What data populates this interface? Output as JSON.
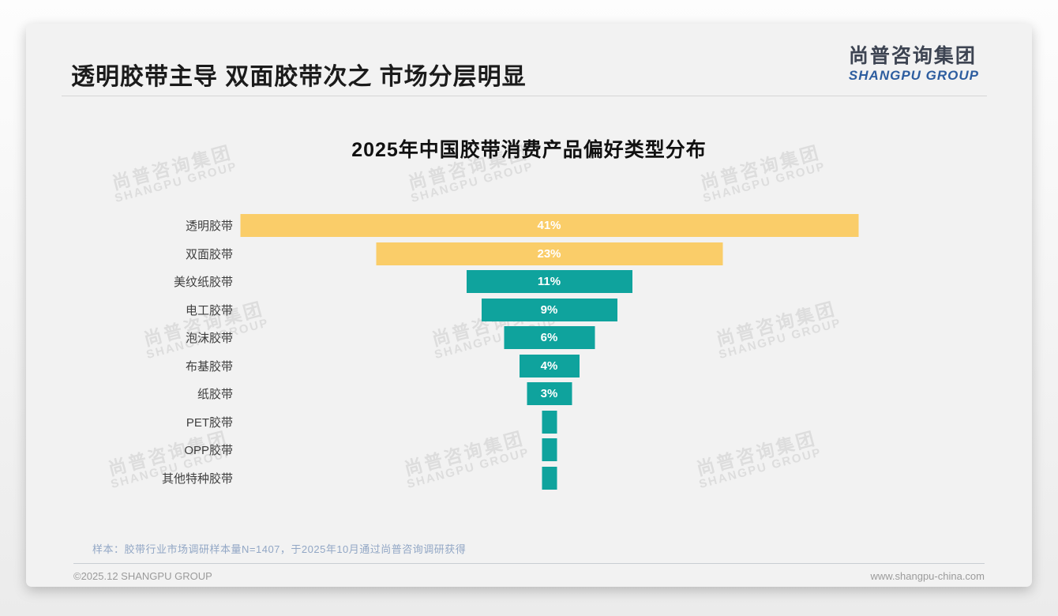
{
  "page": {
    "title": "透明胶带主导 双面胶带次之 市场分层明显",
    "logo": {
      "cn": "尚普咨询集团",
      "en": "SHANGPU GROUP"
    },
    "watermark": {
      "line1": "尚普咨询集团",
      "line2": "SHANGPU GROUP"
    },
    "note": "样本：胶带行业市场调研样本量N=1407，于2025年10月通过尚普咨询调研获得",
    "footer": {
      "left": "©2025.12 SHANGPU GROUP",
      "right": "www.shangpu-china.com"
    }
  },
  "colors": {
    "bar_highlight": "#FACD69",
    "bar_default": "#0FA39D",
    "slide_background": "#f2f2f2",
    "logo_blue": "#2d5d9f",
    "note_blue_gray": "#92a7c5"
  },
  "chart_data": {
    "type": "bar",
    "orientation": "horizontal-centered-funnel",
    "title": "2025年中国胶带消费产品偏好类型分布",
    "categories": [
      "透明胶带",
      "双面胶带",
      "美纹纸胶带",
      "电工胶带",
      "泡沫胶带",
      "布基胶带",
      "纸胶带",
      "PET胶带",
      "OPP胶带",
      "其他特种胶带"
    ],
    "values": [
      41,
      23,
      11,
      9,
      6,
      4,
      3,
      1,
      1,
      1
    ],
    "data_labels": [
      "41%",
      "23%",
      "11%",
      "9%",
      "6%",
      "4%",
      "3%",
      "",
      "",
      ""
    ],
    "bar_colors": [
      "#FACD69",
      "#FACD69",
      "#0FA39D",
      "#0FA39D",
      "#0FA39D",
      "#0FA39D",
      "#0FA39D",
      "#0FA39D",
      "#0FA39D",
      "#0FA39D"
    ],
    "xlim": [
      0,
      41
    ],
    "unit": "%",
    "legend": false,
    "gridlines": false,
    "axes_visible": false
  }
}
